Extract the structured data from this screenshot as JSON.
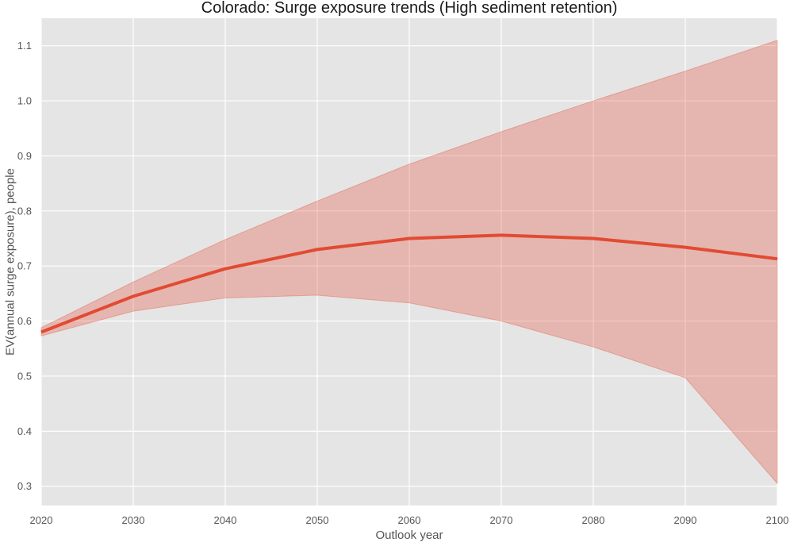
{
  "colors": {
    "plot_background": "#e5e5e5",
    "grid": "#ffffff",
    "line": "#e24a33",
    "band": "#e24a33"
  },
  "chart_data": {
    "type": "line",
    "title": "Colorado: Surge exposure trends (High sediment retention)",
    "xlabel": "Outlook year",
    "ylabel": "EV(annual surge exposure), people",
    "xlim": [
      2020,
      2100
    ],
    "ylim": [
      0.265,
      1.15
    ],
    "grid": true,
    "legend": "none",
    "x": [
      2020,
      2030,
      2040,
      2050,
      2060,
      2070,
      2080,
      2090,
      2100
    ],
    "x_tick_labels": [
      "2020",
      "2030",
      "2040",
      "2050",
      "2060",
      "2070",
      "2080",
      "2090",
      "2100"
    ],
    "y_ticks": [
      0.3,
      0.4,
      0.5,
      0.6,
      0.7,
      0.8,
      0.9,
      1.0,
      1.1
    ],
    "y_tick_labels": [
      "0.3",
      "0.4",
      "0.5",
      "0.6",
      "0.7",
      "0.8",
      "0.9",
      "1.0",
      "1.1"
    ],
    "series": [
      {
        "values": [
          0.58,
          0.645,
          0.695,
          0.73,
          0.75,
          0.756,
          0.75,
          0.734,
          0.713
        ],
        "lower": [
          0.573,
          0.618,
          0.642,
          0.647,
          0.633,
          0.6,
          0.553,
          0.497,
          0.305
        ],
        "upper": [
          0.588,
          0.671,
          0.748,
          0.818,
          0.885,
          0.944,
          1.0,
          1.054,
          1.11
        ]
      }
    ]
  }
}
